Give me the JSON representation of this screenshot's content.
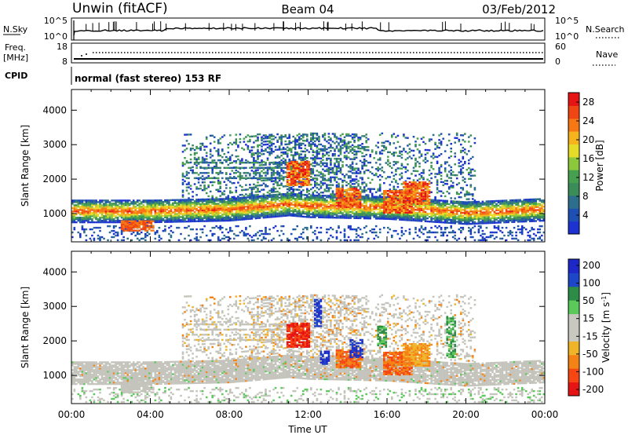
{
  "header": {
    "station": "Unwin (fitACF)",
    "beam": "Beam 04",
    "date": "03/Feb/2012"
  },
  "top_panels": {
    "nsky_label": "N.Sky",
    "nsky_ticks": [
      "10^5",
      "10^0"
    ],
    "nsearch_label": "N.Search",
    "nsearch_ticks": [
      "10^5",
      "10^0"
    ],
    "freq_label": "Freq.",
    "freq_unit": "[MHz]",
    "freq_ticks": [
      "18",
      "8"
    ],
    "nave_label": "Nave",
    "nave_ticks": [
      "60",
      "0"
    ],
    "cpid_label": "CPID",
    "cpid_text": "normal (fast stereo) 153 RF"
  },
  "colors": {
    "power": [
      "#1e32d2",
      "#1e50b4",
      "#2d6e8c",
      "#3c8c5a",
      "#46a050",
      "#8cc83c",
      "#e6dc28",
      "#f5b41e",
      "#f57814",
      "#f04614",
      "#e61414"
    ],
    "velocity": [
      "#e61414",
      "#f54614",
      "#f58214",
      "#f0b428",
      "#c8c8c0",
      "#c8c8c0",
      "#5ac85a",
      "#2d8c46",
      "#1e46c8",
      "#1e28c8"
    ],
    "scatter_gray": "#c4c4bc"
  },
  "chart_data": [
    {
      "type": "heatmap",
      "title": "Power",
      "ylabel": "Slant Range [km]",
      "ylim": [
        180,
        4600
      ],
      "xlim": [
        "00:00",
        "24:00"
      ],
      "yticks": [
        "1000",
        "2000",
        "3000",
        "4000"
      ],
      "colorbar_label": "Power [dB]",
      "colorbar_ticks": [
        "4",
        "8",
        "12",
        "16",
        "20",
        "24",
        "28"
      ],
      "colorbar_range": [
        0,
        30
      ],
      "main_echo_band_km": {
        "x": [
          "00:00",
          "04:00",
          "08:00",
          "11:00",
          "12:00",
          "16:00",
          "20:00",
          "24:00"
        ],
        "y": [
          1050,
          1050,
          1100,
          1250,
          1200,
          1150,
          1000,
          1100
        ]
      }
    },
    {
      "type": "heatmap",
      "title": "Velocity",
      "ylabel": "Slant Range [km]",
      "xlabel": "Time UT",
      "ylim": [
        180,
        4600
      ],
      "xlim": [
        "00:00",
        "24:00"
      ],
      "xticks": [
        "00:00",
        "04:00",
        "08:00",
        "12:00",
        "16:00",
        "20:00",
        "00:00"
      ],
      "yticks": [
        "1000",
        "2000",
        "3000",
        "4000"
      ],
      "colorbar_label": "Velocity [m s^-1]",
      "colorbar_ticks": [
        "200",
        "100",
        "50",
        "15",
        "-15",
        "-50",
        "-100",
        "-200"
      ],
      "colorbar_range": [
        -250,
        250
      ]
    }
  ]
}
